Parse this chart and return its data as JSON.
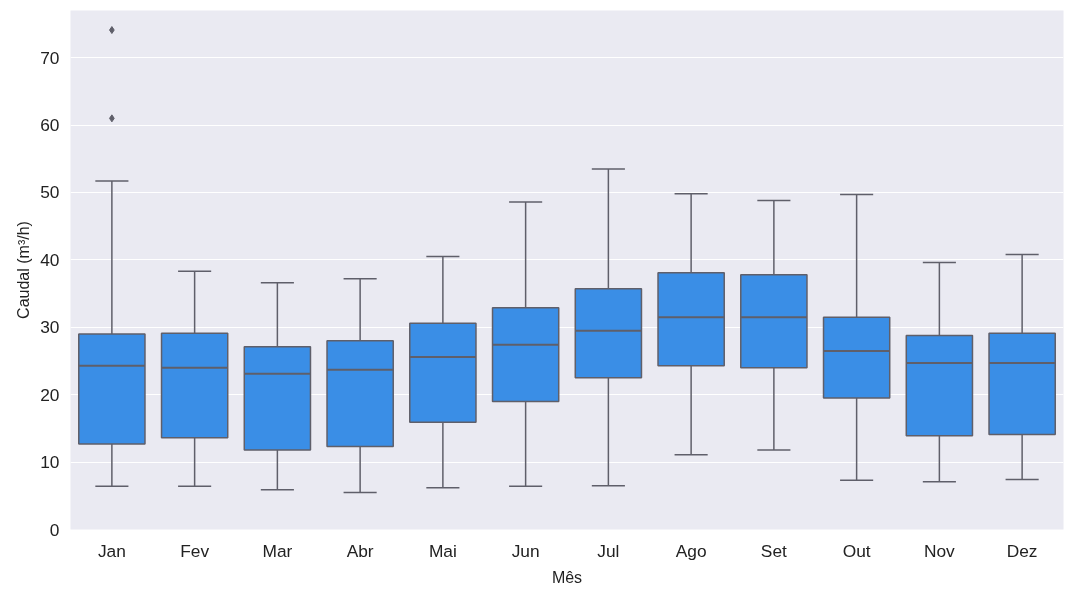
{
  "chart_data": {
    "type": "box",
    "xlabel": "Mês",
    "ylabel": "Caudal (m³/h)",
    "categories": [
      "Jan",
      "Fev",
      "Mar",
      "Abr",
      "Mai",
      "Jun",
      "Jul",
      "Ago",
      "Set",
      "Out",
      "Nov",
      "Dez"
    ],
    "color": "#3a8ee6",
    "ylim": [
      0,
      77
    ],
    "yticks": [
      0,
      10,
      20,
      30,
      40,
      50,
      60,
      70
    ],
    "grid": "y",
    "boxes": [
      {
        "low": 6.4,
        "q1": 12.7,
        "median": 24.3,
        "q3": 29.0,
        "high": 51.7,
        "outliers": [
          61.0,
          74.1
        ]
      },
      {
        "low": 6.4,
        "q1": 13.6,
        "median": 24.0,
        "q3": 29.1,
        "high": 38.3
      },
      {
        "low": 5.9,
        "q1": 11.8,
        "median": 23.1,
        "q3": 27.1,
        "high": 36.6
      },
      {
        "low": 5.5,
        "q1": 12.3,
        "median": 23.7,
        "q3": 28.0,
        "high": 37.2
      },
      {
        "low": 6.2,
        "q1": 15.9,
        "median": 25.6,
        "q3": 30.6,
        "high": 40.5
      },
      {
        "low": 6.4,
        "q1": 19.0,
        "median": 27.4,
        "q3": 32.9,
        "high": 48.6
      },
      {
        "low": 6.5,
        "q1": 22.5,
        "median": 29.5,
        "q3": 35.7,
        "high": 53.5
      },
      {
        "low": 11.1,
        "q1": 24.3,
        "median": 31.5,
        "q3": 38.1,
        "high": 49.8
      },
      {
        "low": 11.8,
        "q1": 24.0,
        "median": 31.5,
        "q3": 37.8,
        "high": 48.8
      },
      {
        "low": 7.3,
        "q1": 19.5,
        "median": 26.5,
        "q3": 31.5,
        "high": 49.7
      },
      {
        "low": 7.1,
        "q1": 13.9,
        "median": 24.7,
        "q3": 28.8,
        "high": 39.6
      },
      {
        "low": 7.4,
        "q1": 14.1,
        "median": 24.7,
        "q3": 29.1,
        "high": 40.8
      }
    ]
  }
}
